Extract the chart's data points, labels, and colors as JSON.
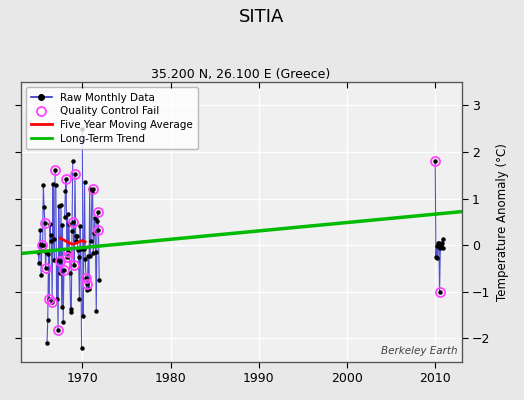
{
  "title": "SITIA",
  "subtitle": "35.200 N, 26.100 E (Greece)",
  "ylabel": "Temperature Anomaly (°C)",
  "watermark": "Berkeley Earth",
  "xlim": [
    1963,
    2013
  ],
  "ylim": [
    -2.5,
    3.5
  ],
  "yticks": [
    -2,
    -1,
    0,
    1,
    2,
    3
  ],
  "xticks": [
    1970,
    1980,
    1990,
    2000,
    2010
  ],
  "fig_bg_color": "#e8e8e8",
  "plot_bg_color": "#f0f0f0",
  "grid_color": "#ffffff",
  "raw_color": "#3333cc",
  "raw_dot_color": "#000000",
  "qc_color": "#ff44ff",
  "moving_avg_color": "#ff0000",
  "trend_color": "#00bb00",
  "trend_x": [
    1963,
    2013
  ],
  "trend_y": [
    -0.18,
    0.72
  ],
  "moving_avg_x": [
    1967.5,
    1968.0,
    1968.3,
    1968.6,
    1969.0,
    1969.5,
    1970.0,
    1970.3
  ],
  "moving_avg_y": [
    0.15,
    0.1,
    0.07,
    0.04,
    0.02,
    0.06,
    0.1,
    0.07
  ]
}
